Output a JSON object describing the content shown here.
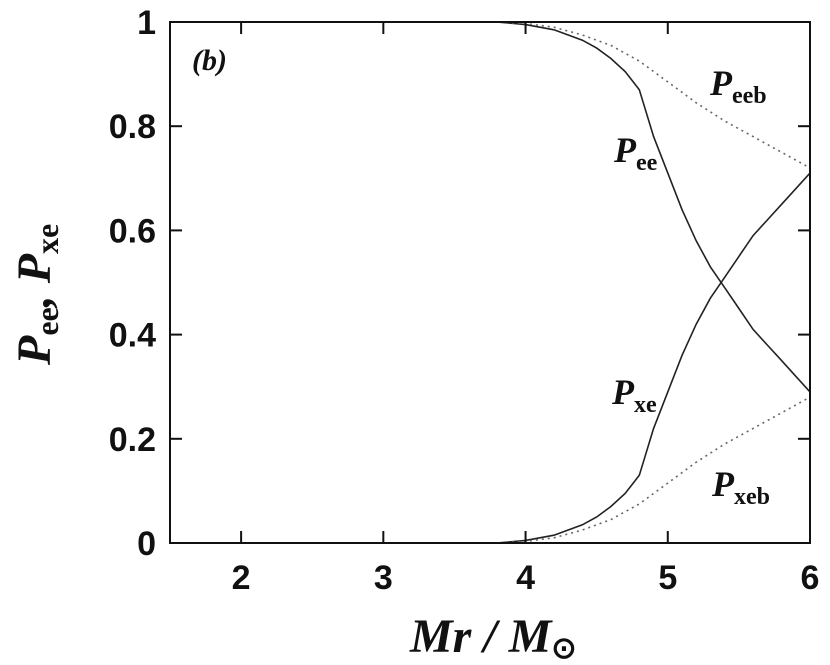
{
  "chart_data": {
    "type": "line",
    "panel_label": "(b)",
    "xlabel": {
      "main": "Mr / M",
      "symbol": "⊙"
    },
    "ylabel": {
      "p1": "P",
      "s1": "ee",
      "sep": ", ",
      "p2": "P",
      "s2": "xe"
    },
    "xlim": [
      1.5,
      6
    ],
    "ylim": [
      0,
      1
    ],
    "xticks": [
      2,
      3,
      4,
      5,
      6
    ],
    "yticks": [
      0,
      0.2,
      0.4,
      0.6,
      0.8,
      1
    ],
    "xtick_labels": [
      "2",
      "3",
      "4",
      "5",
      "6"
    ],
    "ytick_labels": [
      "0",
      "0.2",
      "0.4",
      "0.6",
      "0.8",
      "1"
    ],
    "grid": false,
    "series": [
      {
        "name": "P_ee",
        "style": "solid",
        "label": {
          "main": "P",
          "sub": "ee"
        },
        "points": [
          [
            1.5,
            1
          ],
          [
            3.8,
            1
          ],
          [
            4.0,
            0.995
          ],
          [
            4.2,
            0.985
          ],
          [
            4.4,
            0.965
          ],
          [
            4.5,
            0.95
          ],
          [
            4.6,
            0.93
          ],
          [
            4.7,
            0.905
          ],
          [
            4.8,
            0.87
          ],
          [
            4.9,
            0.78
          ],
          [
            5.0,
            0.71
          ],
          [
            5.1,
            0.64
          ],
          [
            5.2,
            0.58
          ],
          [
            5.3,
            0.53
          ],
          [
            5.4,
            0.49
          ],
          [
            5.5,
            0.45
          ],
          [
            5.6,
            0.41
          ],
          [
            5.7,
            0.38
          ],
          [
            5.8,
            0.35
          ],
          [
            5.9,
            0.32
          ],
          [
            6.0,
            0.29
          ]
        ]
      },
      {
        "name": "P_xe",
        "style": "solid",
        "label": {
          "main": "P",
          "sub": "xe"
        },
        "points": [
          [
            1.5,
            0
          ],
          [
            3.8,
            0
          ],
          [
            4.0,
            0.005
          ],
          [
            4.2,
            0.015
          ],
          [
            4.4,
            0.035
          ],
          [
            4.5,
            0.05
          ],
          [
            4.6,
            0.07
          ],
          [
            4.7,
            0.095
          ],
          [
            4.8,
            0.13
          ],
          [
            4.9,
            0.22
          ],
          [
            5.0,
            0.29
          ],
          [
            5.1,
            0.36
          ],
          [
            5.2,
            0.42
          ],
          [
            5.3,
            0.47
          ],
          [
            5.4,
            0.51
          ],
          [
            5.5,
            0.55
          ],
          [
            5.6,
            0.59
          ],
          [
            5.7,
            0.62
          ],
          [
            5.8,
            0.65
          ],
          [
            5.9,
            0.68
          ],
          [
            6.0,
            0.71
          ]
        ]
      },
      {
        "name": "P_eeb",
        "style": "dotted",
        "label": {
          "main": "P",
          "sub": "eeb"
        },
        "points": [
          [
            1.5,
            1
          ],
          [
            3.8,
            1
          ],
          [
            4.0,
            0.997
          ],
          [
            4.2,
            0.99
          ],
          [
            4.4,
            0.975
          ],
          [
            4.6,
            0.955
          ],
          [
            4.8,
            0.925
          ],
          [
            5.0,
            0.885
          ],
          [
            5.2,
            0.845
          ],
          [
            5.4,
            0.81
          ],
          [
            5.6,
            0.78
          ],
          [
            5.8,
            0.75
          ],
          [
            6.0,
            0.72
          ]
        ]
      },
      {
        "name": "P_xeb",
        "style": "dotted",
        "label": {
          "main": "P",
          "sub": "xeb"
        },
        "points": [
          [
            1.5,
            0
          ],
          [
            3.8,
            0
          ],
          [
            4.0,
            0.003
          ],
          [
            4.2,
            0.01
          ],
          [
            4.4,
            0.025
          ],
          [
            4.6,
            0.045
          ],
          [
            4.8,
            0.075
          ],
          [
            5.0,
            0.115
          ],
          [
            5.2,
            0.155
          ],
          [
            5.4,
            0.19
          ],
          [
            5.6,
            0.22
          ],
          [
            5.8,
            0.25
          ],
          [
            6.0,
            0.28
          ]
        ]
      }
    ]
  }
}
